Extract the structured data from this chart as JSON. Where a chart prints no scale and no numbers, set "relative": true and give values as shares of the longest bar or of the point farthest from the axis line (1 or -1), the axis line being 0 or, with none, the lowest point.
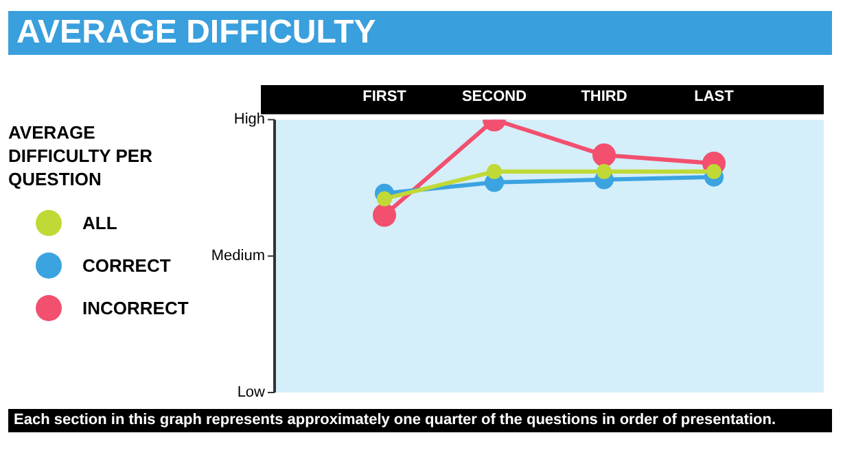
{
  "chart_data": {
    "type": "line",
    "title": "AVERAGE DIFFICULTY",
    "legend_title": "AVERAGE DIFFICULTY PER QUESTION",
    "categories": [
      "FIRST",
      "SECOND",
      "THIRD",
      "LAST"
    ],
    "series": [
      {
        "name": "ALL",
        "color": "#c0d936",
        "values": [
          0.71,
          0.81,
          0.81,
          0.81
        ]
      },
      {
        "name": "CORRECT",
        "color": "#3ba3e0",
        "values": [
          0.73,
          0.77,
          0.78,
          0.79
        ]
      },
      {
        "name": "INCORRECT",
        "color": "#f2506e",
        "values": [
          0.65,
          1,
          0.87,
          0.84
        ]
      }
    ],
    "relative": true,
    "legend": "left",
    "marker": "circle",
    "line_style": "solid",
    "annotations": [
      "High",
      "Medium",
      "Low",
      "Each section in this graph represents approximately one quarter of the questions in order of presentation."
    ]
  }
}
